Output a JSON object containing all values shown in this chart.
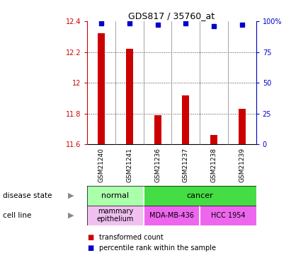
{
  "title": "GDS817 / 35760_at",
  "samples": [
    "GSM21240",
    "GSM21241",
    "GSM21236",
    "GSM21237",
    "GSM21238",
    "GSM21239"
  ],
  "bar_values": [
    12.32,
    12.22,
    11.79,
    11.92,
    11.66,
    11.83
  ],
  "percentile_values": [
    98,
    98,
    97,
    98,
    96,
    97
  ],
  "ymin": 11.6,
  "ymax": 12.4,
  "yticks": [
    11.6,
    11.8,
    12.0,
    12.2,
    12.4
  ],
  "ytick_labels": [
    "11.6",
    "11.8",
    "12",
    "12.2",
    "12.4"
  ],
  "y2ticks": [
    0,
    25,
    50,
    75,
    100
  ],
  "y2tick_labels": [
    "0",
    "25",
    "50",
    "75",
    "100%"
  ],
  "bar_color": "#cc0000",
  "dot_color": "#0000cc",
  "disease_colors": {
    "normal": "#aaffaa",
    "cancer": "#44dd44"
  },
  "cell_colors": {
    "mammary epithelium": "#f0c0f0",
    "MDA-MB-436": "#ee66ee",
    "HCC 1954": "#ee66ee"
  },
  "sample_bg": "#cccccc",
  "tick_color_left": "#cc0000",
  "tick_color_right": "#0000cc",
  "grid_color": "#444444"
}
